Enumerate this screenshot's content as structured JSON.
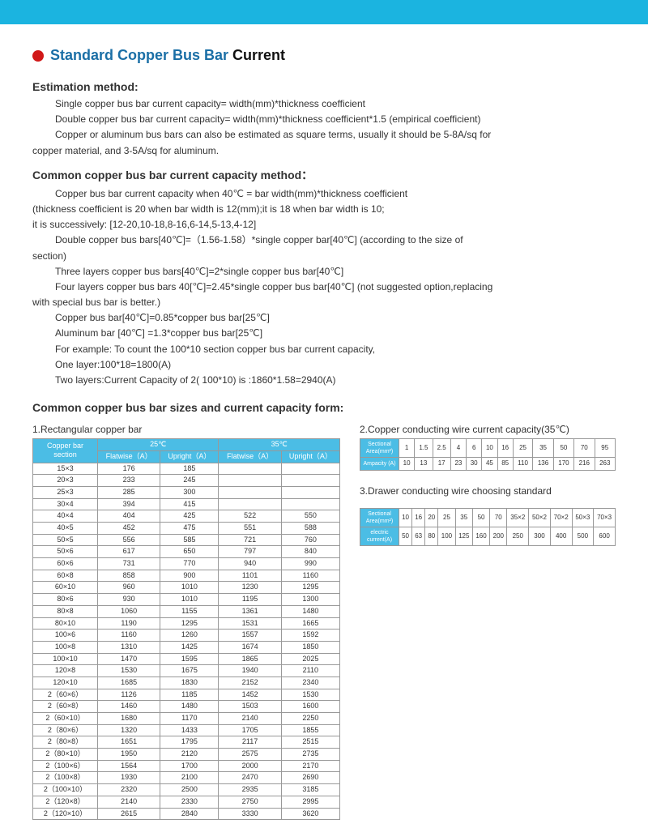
{
  "title_prefix": "Standard Copper Bus Bar ",
  "title_accent": "Current",
  "est_method_h": "Estimation method:",
  "est_lines": [
    "Single copper bus bar current capacity= width(mm)*thickness coefficient",
    "Double copper bus bar current capacity= width(mm)*thickness coefficient*1.5 (empirical coefficient)",
    "Copper or aluminum bus bars can also be estimated as square terms, usually it should be 5-8A/sq for"
  ],
  "est_tail": "copper material, and 3-5A/sq for aluminum.",
  "cap_method_h": "Common copper bus bar current capacity method：",
  "cap_l1": "Copper bus bar current capacity when 40℃ = bar width(mm)*thickness coefficient",
  "cap_l2": "(thickness coefficient is 20 when bar width is 12(mm);it is 18 when bar width is 10;",
  "cap_l3": "it is successively: [12-20,10-18,8-16,6-14,5-13,4-12]",
  "cap_l4": "Double copper bus bars[40℃]=（1.56-1.58）*single copper bar[40℃] (according to the size of",
  "cap_l5": "section)",
  "cap_l6": "Three layers copper bus bars[40℃]=2*single copper bus bar[40℃]",
  "cap_l7": "Four layers copper bus bars 40[℃]=2.45*single copper bus bar[40℃] (not suggested option,replacing",
  "cap_l8": "with special bus bar is better.)",
  "cap_l9": "Copper bus bar[40℃]=0.85*copper bus bar[25℃]",
  "cap_l10": "Aluminum bar [40℃] =1.3*copper bus bar[25℃]",
  "cap_l11": "For example: To count the 100*10 section copper bus bar current capacity,",
  "cap_l12": "One layer:100*18=1800(A)",
  "cap_l13": "Two layers:Current Capacity of 2( 100*10) is :1860*1.58=2940(A)",
  "sizes_h": "Common copper bus bar sizes and current capacity form:",
  "t1_h": "1.Rectangular copper bar",
  "t1": {
    "head_top": [
      "Copper bar section",
      "25℃",
      "35℃"
    ],
    "head_sub": [
      "Flatwise（A）",
      "Upright（A）",
      "Flatwise（A）",
      "Upright（A）"
    ],
    "rows": [
      [
        "15×3",
        "176",
        "185",
        "",
        ""
      ],
      [
        "20×3",
        "233",
        "245",
        "",
        ""
      ],
      [
        "25×3",
        "285",
        "300",
        "",
        ""
      ],
      [
        "30×4",
        "394",
        "415",
        "",
        ""
      ],
      [
        "40×4",
        "404",
        "425",
        "522",
        "550"
      ],
      [
        "40×5",
        "452",
        "475",
        "551",
        "588"
      ],
      [
        "50×5",
        "556",
        "585",
        "721",
        "760"
      ],
      [
        "50×6",
        "617",
        "650",
        "797",
        "840"
      ],
      [
        "60×6",
        "731",
        "770",
        "940",
        "990"
      ],
      [
        "60×8",
        "858",
        "900",
        "1101",
        "1160"
      ],
      [
        "60×10",
        "960",
        "1010",
        "1230",
        "1295"
      ],
      [
        "80×6",
        "930",
        "1010",
        "1195",
        "1300"
      ],
      [
        "80×8",
        "1060",
        "1155",
        "1361",
        "1480"
      ],
      [
        "80×10",
        "1190",
        "1295",
        "1531",
        "1665"
      ],
      [
        "100×6",
        "1160",
        "1260",
        "1557",
        "1592"
      ],
      [
        "100×8",
        "1310",
        "1425",
        "1674",
        "1850"
      ],
      [
        "100×10",
        "1470",
        "1595",
        "1865",
        "2025"
      ],
      [
        "120×8",
        "1530",
        "1675",
        "1940",
        "2110"
      ],
      [
        "120×10",
        "1685",
        "1830",
        "2152",
        "2340"
      ],
      [
        "2（60×6）",
        "1126",
        "1185",
        "1452",
        "1530"
      ],
      [
        "2（60×8）",
        "1460",
        "1480",
        "1503",
        "1600"
      ],
      [
        "2（60×10）",
        "1680",
        "1170",
        "2140",
        "2250"
      ],
      [
        "2（80×6）",
        "1320",
        "1433",
        "1705",
        "1855"
      ],
      [
        "2（80×8）",
        "1651",
        "1795",
        "2117",
        "2515"
      ],
      [
        "2（80×10）",
        "1950",
        "2120",
        "2575",
        "2735"
      ],
      [
        "2（100×6）",
        "1564",
        "1700",
        "2000",
        "2170"
      ],
      [
        "2（100×8）",
        "1930",
        "2100",
        "2470",
        "2690"
      ],
      [
        "2（100×10）",
        "2320",
        "2500",
        "2935",
        "3185"
      ],
      [
        "2（120×8）",
        "2140",
        "2330",
        "2750",
        "2995"
      ],
      [
        "2（120×10）",
        "2615",
        "2840",
        "3330",
        "3620"
      ]
    ]
  },
  "t2_h": "2.Copper conducting wire current capacity(35℃)",
  "t2": {
    "row1_label": "Sectional Area(mm²)",
    "row1": [
      "1",
      "1.5",
      "2.5",
      "4",
      "6",
      "10",
      "16",
      "25",
      "35",
      "50",
      "70",
      "95"
    ],
    "row2_label": "Ampacity (A)",
    "row2": [
      "10",
      "13",
      "17",
      "23",
      "30",
      "45",
      "85",
      "110",
      "136",
      "170",
      "216",
      "263"
    ]
  },
  "t3_h": "3.Drawer conducting wire choosing standard",
  "t3": {
    "row1_label": "Sectional Area(mm²)",
    "row1": [
      "10",
      "16",
      "20",
      "25",
      "35",
      "50",
      "70",
      "35×2",
      "50×2",
      "70×2",
      "50×3",
      "70×3"
    ],
    "row2_label": "electric current(A)",
    "row2": [
      "50",
      "63",
      "80",
      "100",
      "125",
      "160",
      "200",
      "250",
      "300",
      "400",
      "500",
      "600"
    ]
  }
}
